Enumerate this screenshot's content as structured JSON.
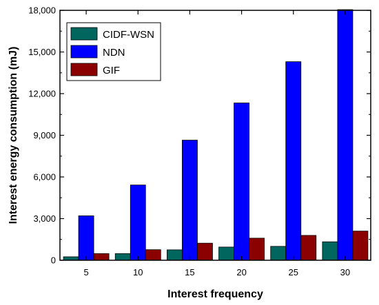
{
  "chart_data": {
    "type": "bar",
    "categories": [
      "5",
      "10",
      "15",
      "20",
      "25",
      "30"
    ],
    "series": [
      {
        "name": "CIDF-WSN",
        "color": "#00665e",
        "values": [
          250,
          480,
          750,
          950,
          1000,
          1330
        ]
      },
      {
        "name": "NDN",
        "color": "#0000ff",
        "values": [
          3200,
          5420,
          8650,
          11330,
          14300,
          18050
        ]
      },
      {
        "name": "GIF",
        "color": "#8b0000",
        "values": [
          480,
          760,
          1230,
          1590,
          1790,
          2100
        ]
      }
    ],
    "xlabel": "Interest frequency",
    "ylabel": "Interest energy consumption (mJ)",
    "ylim": [
      0,
      18000
    ],
    "yticks": [
      0,
      3000,
      6000,
      9000,
      12000,
      15000,
      18000
    ],
    "ytick_labels": [
      "0",
      "3,000",
      "6,000",
      "9,000",
      "12,000",
      "15,000",
      "18,000"
    ],
    "legend_position": "top-left",
    "grid": false
  }
}
